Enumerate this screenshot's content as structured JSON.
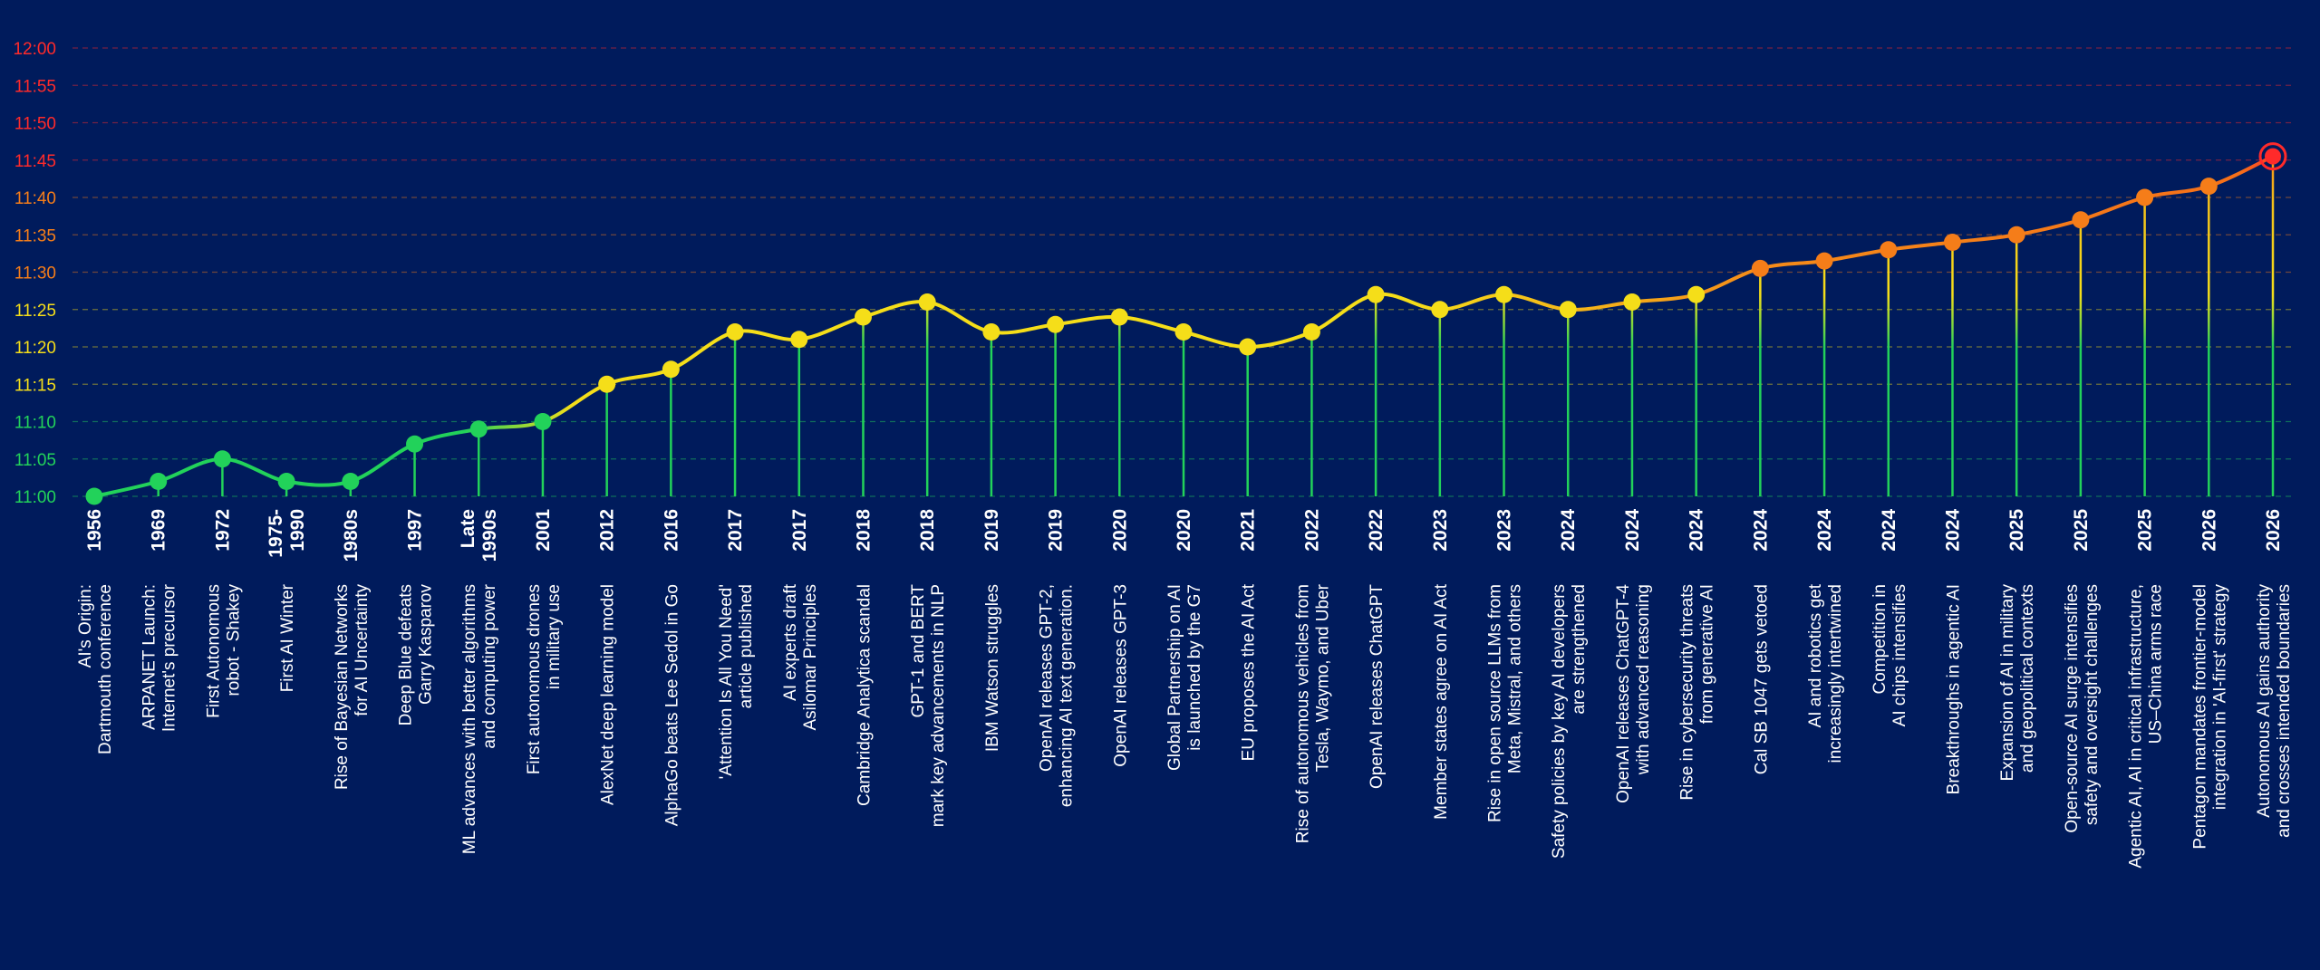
{
  "chart_data": {
    "type": "line",
    "title": "",
    "xlabel": "",
    "ylabel": "",
    "y_unit": "minutes past 11:00",
    "ylim": [
      0,
      60
    ],
    "y_ticks": [
      {
        "v": 0,
        "label": "11:00"
      },
      {
        "v": 5,
        "label": "11:05"
      },
      {
        "v": 10,
        "label": "11:10"
      },
      {
        "v": 15,
        "label": "11:15"
      },
      {
        "v": 20,
        "label": "11:20"
      },
      {
        "v": 25,
        "label": "11:25"
      },
      {
        "v": 30,
        "label": "11:30"
      },
      {
        "v": 35,
        "label": "11:35"
      },
      {
        "v": 40,
        "label": "11:40"
      },
      {
        "v": 45,
        "label": "11:45"
      },
      {
        "v": 50,
        "label": "11:50"
      },
      {
        "v": 55,
        "label": "11:55"
      },
      {
        "v": 60,
        "label": "12:00"
      }
    ],
    "grid": true,
    "colors": {
      "green": "#22d25a",
      "yellow": "#f5de19",
      "orange": "#f57d19",
      "red": "#ff2a2a",
      "background": "#001b5c"
    },
    "points": [
      {
        "year": [
          "1956"
        ],
        "desc": [
          "AI's Origin:",
          "Dartmouth conference"
        ],
        "y": 0
      },
      {
        "year": [
          "1969"
        ],
        "desc": [
          "ARPANET Launch:",
          "Internet's precursor"
        ],
        "y": 2
      },
      {
        "year": [
          "1972"
        ],
        "desc": [
          "First Autonomous",
          "robot - Shakey"
        ],
        "y": 5
      },
      {
        "year": [
          "1975-",
          "1990"
        ],
        "desc": [
          "First AI Winter"
        ],
        "y": 2
      },
      {
        "year": [
          "1980s"
        ],
        "desc": [
          "Rise of Bayesian Networks",
          "for AI Uncertainty"
        ],
        "y": 2
      },
      {
        "year": [
          "1997"
        ],
        "desc": [
          "Deep Blue defeats",
          "Garry Kasparov"
        ],
        "y": 7
      },
      {
        "year": [
          "Late",
          "1990s"
        ],
        "desc": [
          "ML advances with better algorithms",
          "and computing power"
        ],
        "y": 9
      },
      {
        "year": [
          "2001"
        ],
        "desc": [
          "First autonomous drones",
          "in military use"
        ],
        "y": 10
      },
      {
        "year": [
          "2012"
        ],
        "desc": [
          "AlexNet deep learning model"
        ],
        "y": 15
      },
      {
        "year": [
          "2016"
        ],
        "desc": [
          "AlphaGo beats Lee Sedol in Go"
        ],
        "y": 17
      },
      {
        "year": [
          "2017"
        ],
        "desc": [
          "'Attention Is All You Need'",
          "article published"
        ],
        "y": 22
      },
      {
        "year": [
          "2017"
        ],
        "desc": [
          "AI experts draft",
          "Asilomar Principles"
        ],
        "y": 21
      },
      {
        "year": [
          "2018"
        ],
        "desc": [
          "Cambridge Analytica scandal"
        ],
        "y": 24
      },
      {
        "year": [
          "2018"
        ],
        "desc": [
          "GPT-1 and BERT",
          "mark key advancements in NLP"
        ],
        "y": 26
      },
      {
        "year": [
          "2019"
        ],
        "desc": [
          "IBM Watson struggles"
        ],
        "y": 22
      },
      {
        "year": [
          "2019"
        ],
        "desc": [
          "OpenAI releases GPT-2,",
          "enhancing AI text generation."
        ],
        "y": 23
      },
      {
        "year": [
          "2020"
        ],
        "desc": [
          "OpenAI releases GPT-3"
        ],
        "y": 24
      },
      {
        "year": [
          "2020"
        ],
        "desc": [
          "Global Partnership on AI",
          "is launched by the G7"
        ],
        "y": 22
      },
      {
        "year": [
          "2021"
        ],
        "desc": [
          "EU proposes the AI Act"
        ],
        "y": 20
      },
      {
        "year": [
          "2022"
        ],
        "desc": [
          "Rise of autonomous vehicles from",
          "Tesla, Waymo, and Uber"
        ],
        "y": 22
      },
      {
        "year": [
          "2022"
        ],
        "desc": [
          "OpenAI releases ChatGPT"
        ],
        "y": 27
      },
      {
        "year": [
          "2023"
        ],
        "desc": [
          "Member states agree on AI Act"
        ],
        "y": 25
      },
      {
        "year": [
          "2023"
        ],
        "desc": [
          "Rise in open source LLMs from",
          "Meta, Mistral, and others"
        ],
        "y": 27
      },
      {
        "year": [
          "2024"
        ],
        "desc": [
          "Safety policies by key AI developers",
          "are strengthened"
        ],
        "y": 25
      },
      {
        "year": [
          "2024"
        ],
        "desc": [
          "OpenAI releases ChatGPT-4",
          "with advanced reasoning"
        ],
        "y": 26
      },
      {
        "year": [
          "2024"
        ],
        "desc": [
          "Rise in cybersecurity threats",
          "from generative AI"
        ],
        "y": 27
      },
      {
        "year": [
          "2024"
        ],
        "desc": [
          "Cal SB 1047 gets vetoed"
        ],
        "y": 30.5
      },
      {
        "year": [
          "2024"
        ],
        "desc": [
          "AI and robotics get",
          "increasingly intertwined"
        ],
        "y": 31.5
      },
      {
        "year": [
          "2024"
        ],
        "desc": [
          "Competition in",
          "AI chips intensifies"
        ],
        "y": 33
      },
      {
        "year": [
          "2024"
        ],
        "desc": [
          "Breakthroughs in agentic AI"
        ],
        "y": 34
      },
      {
        "year": [
          "2025"
        ],
        "desc": [
          "Expansion of AI in military",
          "and geopolitical contexts"
        ],
        "y": 35
      },
      {
        "year": [
          "2025"
        ],
        "desc": [
          "Open-source AI surge intensifies",
          "safety and oversight challenges"
        ],
        "y": 37
      },
      {
        "year": [
          "2025"
        ],
        "desc": [
          "Agentic AI, AI in critical infrastructure,",
          "US–China arms race"
        ],
        "y": 40
      },
      {
        "year": [
          "2026"
        ],
        "desc": [
          "Pentagon mandates frontier-model",
          "integration in 'AI-first' strategy"
        ],
        "y": 41.5
      },
      {
        "year": [
          "2026"
        ],
        "desc": [
          "Autonomous AI gains authority",
          "and crosses intended boundaries"
        ],
        "y": 45.5
      }
    ]
  }
}
